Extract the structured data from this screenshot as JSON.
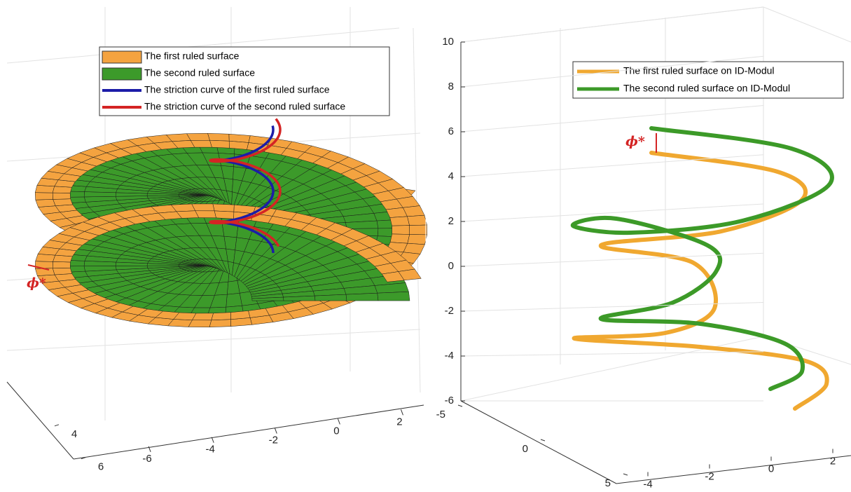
{
  "chart_data": [
    {
      "type": "surface3d",
      "series": [
        {
          "name": "The first ruled surface",
          "color": "#f4a340"
        },
        {
          "name": "The second ruled surface",
          "color": "#3c9a2a"
        },
        {
          "name": "The striction curve of the first ruled surface",
          "color": "#1c1ca8"
        },
        {
          "name": "The striction curve of the second ruled surface",
          "color": "#d42424"
        }
      ],
      "annotation": "ϕ*",
      "xlim": [
        -8,
        2.5
      ],
      "xticks": [
        -6,
        -4,
        -2,
        0,
        2
      ],
      "ylim": [
        2,
        7
      ],
      "yticks": [
        4,
        6
      ],
      "grid": true
    },
    {
      "type": "line3d",
      "series": [
        {
          "name": "The first ruled surface on ID-Modul",
          "color": "#f0a830"
        },
        {
          "name": "The second ruled surface on ID-Modul",
          "color": "#3c9a28"
        }
      ],
      "annotation": "ϕ*",
      "xlim": [
        -5,
        3
      ],
      "xticks": [
        -4,
        -2,
        0,
        2
      ],
      "ylim": [
        -5,
        5
      ],
      "yticks": [
        -5,
        0,
        5
      ],
      "zlim": [
        -6,
        10
      ],
      "zticks": [
        -6,
        -4,
        -2,
        0,
        2,
        4,
        6,
        8,
        10
      ],
      "grid": true
    }
  ]
}
